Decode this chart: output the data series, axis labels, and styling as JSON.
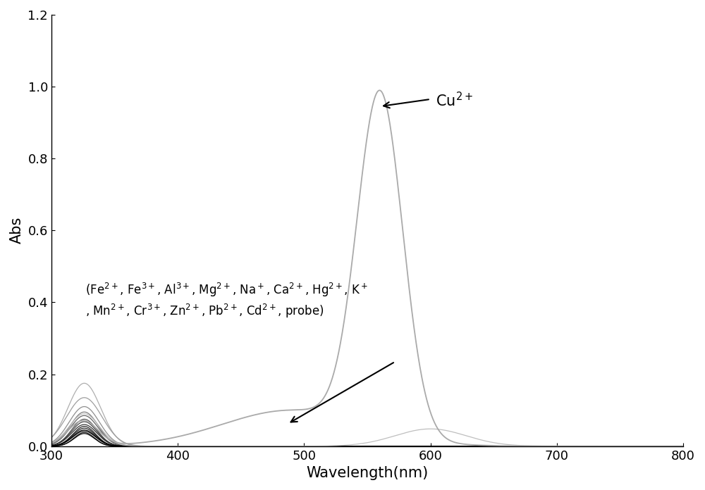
{
  "xlabel": "Wavelength(nm)",
  "ylabel": "Abs",
  "xlim": [
    300,
    800
  ],
  "ylim": [
    0.0,
    1.2
  ],
  "yticks": [
    0.0,
    0.2,
    0.4,
    0.6,
    0.8,
    1.0,
    1.2
  ],
  "xticks": [
    300,
    400,
    500,
    600,
    700,
    800
  ],
  "background_color": "#ffffff",
  "cu_peak_nm": 560,
  "cu_peak_abs": 0.945,
  "fontsize_label": 15,
  "fontsize_tick": 13,
  "fontsize_annotation": 15,
  "fontsize_ion_label": 12
}
